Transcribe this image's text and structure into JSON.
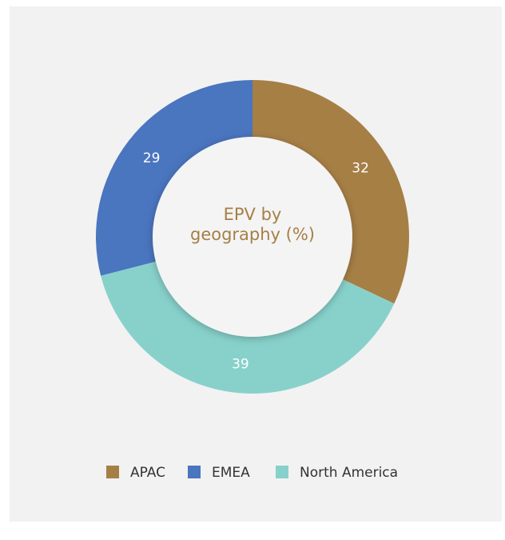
{
  "chart_data": {
    "type": "donut",
    "title": "EPV by geography (%)",
    "categories": [
      "APAC",
      "EMEA",
      "North America"
    ],
    "values": [
      32,
      29,
      39
    ],
    "colors": [
      "#a67f45",
      "#4a75bf",
      "#88d1cb"
    ],
    "legend": "bottom"
  }
}
